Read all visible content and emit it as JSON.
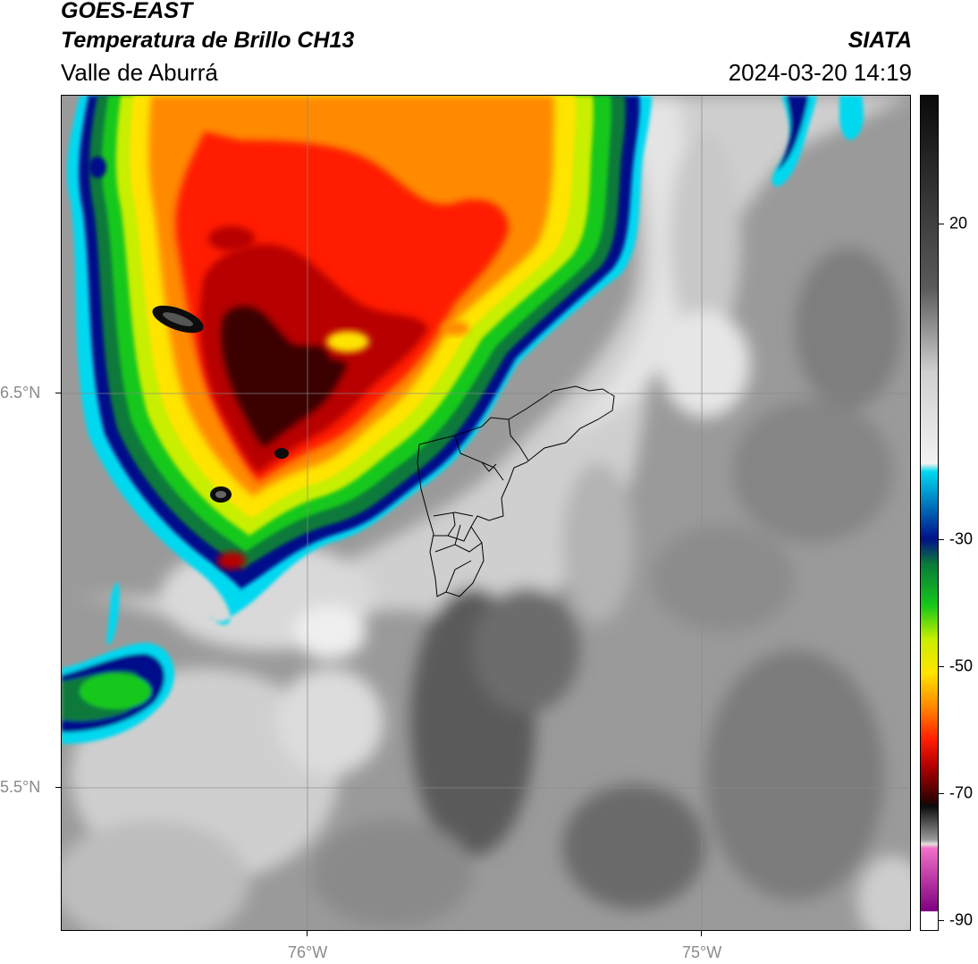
{
  "header": {
    "title_line1": "GOES-EAST",
    "title_line2": "Temperatura de Brillo CH13",
    "region": "Valle de Aburrá",
    "organization": "SIATA",
    "datetime": "2024-03-20 14:19"
  },
  "map": {
    "lat_labels": [
      "6.5°N",
      "5.5°N"
    ],
    "lon_labels": [
      "76°W",
      "75°W"
    ],
    "grid_color": "#888888",
    "boundary_color": "#000000"
  },
  "colorbar": {
    "tick_labels": [
      "20",
      "-30",
      "-50",
      "-70",
      "-90"
    ],
    "color_stops": [
      {
        "value": 30,
        "color": "#0a0a0a"
      },
      {
        "value": 0,
        "color": "#cfcfcf"
      },
      {
        "value": -20,
        "color": "#f2f2f2"
      },
      {
        "value": -21,
        "color": "#00d8f0"
      },
      {
        "value": -30,
        "color": "#00108a"
      },
      {
        "value": -34,
        "color": "#0a7a3a"
      },
      {
        "value": -40,
        "color": "#16c81a"
      },
      {
        "value": -46,
        "color": "#c8ee00"
      },
      {
        "value": -50,
        "color": "#ffe400"
      },
      {
        "value": -55,
        "color": "#ff8a00"
      },
      {
        "value": -60,
        "color": "#ff1e00"
      },
      {
        "value": -64,
        "color": "#b80000"
      },
      {
        "value": -68,
        "color": "#3a0000"
      },
      {
        "value": -70,
        "color": "#0c0c0c"
      },
      {
        "value": -78,
        "color": "#e0e0e0"
      },
      {
        "value": -80,
        "color": "#f070c8"
      },
      {
        "value": -88,
        "color": "#800080"
      },
      {
        "value": -89,
        "color": "#ffffff"
      }
    ]
  }
}
